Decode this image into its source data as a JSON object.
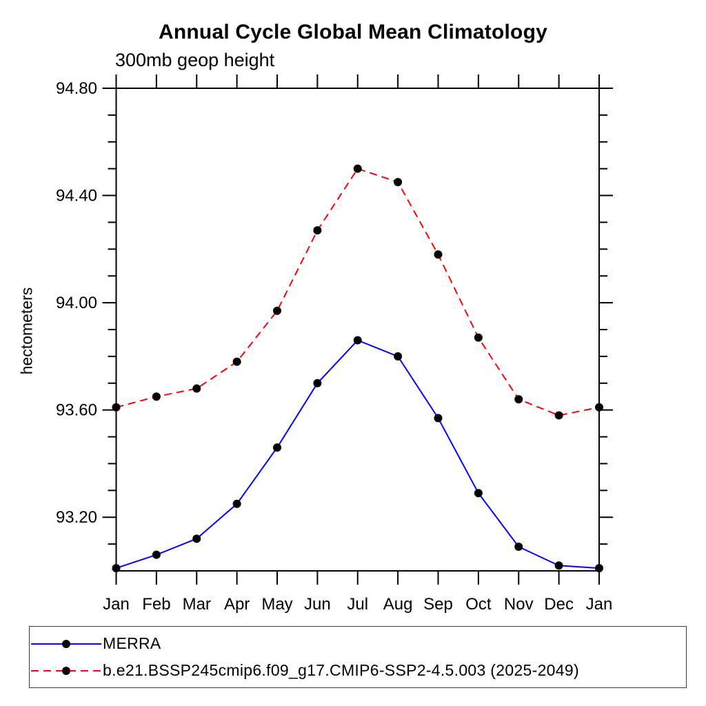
{
  "window": {
    "background": "#ffffff"
  },
  "header": {
    "title": "Annual Cycle Global Mean Climatology",
    "subtitle": "300mb geop height"
  },
  "axes": {
    "y_label": "hectometers",
    "y_tick_labels": [
      "94.80",
      "94.40",
      "94.00",
      "93.60",
      "93.20"
    ],
    "x_tick_labels": [
      "Jan",
      "Feb",
      "Mar",
      "Apr",
      "May",
      "Jun",
      "Jul",
      "Aug",
      "Sep",
      "Oct",
      "Nov",
      "Dec",
      "Jan"
    ]
  },
  "legend": {
    "items": [
      {
        "label": "MERRA",
        "color": "#0000ff",
        "line_style": "solid",
        "marker": "filled-circle",
        "marker_color": "#000000"
      },
      {
        "label": "b.e21.BSSP245cmip6.f09_g17.CMIP6-SSP2-4.5.003 (2025-2049)",
        "color": "#ff0000",
        "line_style": "dashed",
        "marker": "filled-circle",
        "marker_color": "#000000"
      }
    ]
  },
  "chart_data": {
    "type": "line",
    "title": "Annual Cycle Global Mean Climatology",
    "subtitle": "300mb geop height",
    "xlabel": "",
    "ylabel": "hectometers",
    "categories": [
      "Jan",
      "Feb",
      "Mar",
      "Apr",
      "May",
      "Jun",
      "Jul",
      "Aug",
      "Sep",
      "Oct",
      "Nov",
      "Dec",
      "Jan"
    ],
    "series": [
      {
        "name": "MERRA",
        "color": "#0000ff",
        "line_style": "solid",
        "marker": "filled-circle",
        "marker_color": "#000000",
        "values": [
          93.01,
          93.06,
          93.12,
          93.25,
          93.46,
          93.7,
          93.86,
          93.8,
          93.57,
          93.29,
          93.09,
          93.02,
          93.01
        ]
      },
      {
        "name": "b.e21.BSSP245cmip6.f09_g17.CMIP6-SSP2-4.5.003 (2025-2049)",
        "color": "#ff0000",
        "line_style": "dashed",
        "marker": "filled-circle",
        "marker_color": "#000000",
        "values": [
          93.61,
          93.65,
          93.68,
          93.78,
          93.97,
          94.27,
          94.5,
          94.45,
          94.18,
          93.87,
          93.64,
          93.58,
          93.61
        ]
      }
    ],
    "ylim": [
      93.0,
      94.8
    ],
    "y_major_ticks": [
      93.2,
      93.6,
      94.0,
      94.4,
      94.8
    ],
    "y_minor_tick_interval": 0.1,
    "x_minor_ticks": false,
    "grid": false,
    "frame_color": "#000000",
    "tick_direction": "out",
    "legend_position": "bottom-left-box"
  }
}
